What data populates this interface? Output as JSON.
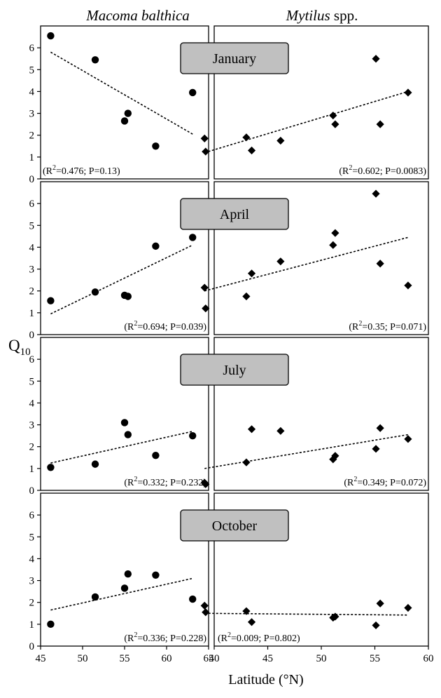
{
  "column_headers": [
    {
      "italic": "Macoma balthica",
      "plain": ""
    },
    {
      "italic": "Mytilus",
      "plain": " spp."
    }
  ],
  "y_axis_label": {
    "main": "Q",
    "sub": "10"
  },
  "x_axis_label": "Latitude (°N)",
  "y_ticks": [
    "0",
    "1",
    "2",
    "3",
    "4",
    "5",
    "6"
  ],
  "x_ticks_left": [
    "45",
    "50",
    "55",
    "60",
    "65"
  ],
  "x_ticks_right": [
    "40",
    "45",
    "50",
    "55",
    "60"
  ],
  "colors": {
    "month_box_fill": "#c0c0c0",
    "marker": "#000000",
    "trend_line": "#000000"
  },
  "chart_data": [
    {
      "type": "scatter",
      "month": "January",
      "species": "Macoma balthica",
      "marker": "circle",
      "xlim": [
        45,
        65
      ],
      "ylim": [
        0,
        7
      ],
      "points": [
        [
          46.2,
          6.55
        ],
        [
          51.5,
          5.45
        ],
        [
          55,
          2.65
        ],
        [
          55.4,
          3.0
        ],
        [
          58.7,
          1.5
        ],
        [
          63.1,
          3.95
        ]
      ],
      "trend": [
        [
          46.2,
          5.8
        ],
        [
          63.1,
          2.05
        ]
      ],
      "stats_text": "(R²=0.476; P=0.13)"
    },
    {
      "type": "scatter",
      "month": "January",
      "species": "Mytilus spp.",
      "marker": "diamond",
      "xlim": [
        40,
        60
      ],
      "ylim": [
        0,
        7
      ],
      "points": [
        [
          39.1,
          1.85
        ],
        [
          39.2,
          1.25
        ],
        [
          43,
          1.9
        ],
        [
          43.5,
          1.3
        ],
        [
          46.2,
          1.75
        ],
        [
          51.1,
          2.9
        ],
        [
          51.3,
          2.5
        ],
        [
          55.1,
          5.5
        ],
        [
          55.5,
          2.5
        ],
        [
          58.1,
          3.95
        ]
      ],
      "trend": [
        [
          39.1,
          1.2
        ],
        [
          58.1,
          4.0
        ]
      ],
      "stats_text": "(R²=0.602; P=0.0083)"
    },
    {
      "type": "scatter",
      "month": "April",
      "species": "Macoma balthica",
      "marker": "circle",
      "xlim": [
        45,
        65
      ],
      "ylim": [
        0,
        7
      ],
      "points": [
        [
          46.2,
          1.55
        ],
        [
          51.5,
          1.95
        ],
        [
          55,
          1.8
        ],
        [
          55.4,
          1.75
        ],
        [
          58.7,
          4.05
        ],
        [
          63.1,
          4.45
        ]
      ],
      "trend": [
        [
          46.2,
          0.95
        ],
        [
          63.1,
          4.1
        ]
      ],
      "stats_text": "(R²=0.694; P=0.039)"
    },
    {
      "type": "scatter",
      "month": "April",
      "species": "Mytilus spp.",
      "marker": "diamond",
      "xlim": [
        40,
        60
      ],
      "ylim": [
        0,
        7
      ],
      "points": [
        [
          39.1,
          2.15
        ],
        [
          39.2,
          1.2
        ],
        [
          43,
          1.75
        ],
        [
          43.5,
          2.8
        ],
        [
          46.2,
          3.35
        ],
        [
          51.1,
          4.1
        ],
        [
          51.3,
          4.65
        ],
        [
          55.1,
          6.45
        ],
        [
          55.5,
          3.25
        ],
        [
          58.1,
          2.25
        ]
      ],
      "trend": [
        [
          39.1,
          2.0
        ],
        [
          58.1,
          4.45
        ]
      ],
      "stats_text": "(R²=0.35; P=0.071)"
    },
    {
      "type": "scatter",
      "month": "July",
      "species": "Macoma balthica",
      "marker": "circle",
      "xlim": [
        45,
        65
      ],
      "ylim": [
        0,
        7
      ],
      "points": [
        [
          46.2,
          1.05
        ],
        [
          51.5,
          1.2
        ],
        [
          55,
          3.1
        ],
        [
          55.4,
          2.55
        ],
        [
          58.7,
          1.6
        ],
        [
          63.1,
          2.5
        ]
      ],
      "trend": [
        [
          46.2,
          1.25
        ],
        [
          63.1,
          2.7
        ]
      ],
      "stats_text": "(R²=0.332; P=0.232)"
    },
    {
      "type": "scatter",
      "month": "July",
      "species": "Mytilus spp.",
      "marker": "diamond",
      "xlim": [
        40,
        60
      ],
      "ylim": [
        0,
        7
      ],
      "points": [
        [
          39.1,
          0.35
        ],
        [
          39.2,
          0.28
        ],
        [
          43,
          1.28
        ],
        [
          43.5,
          2.8
        ],
        [
          46.2,
          2.72
        ],
        [
          51.1,
          1.42
        ],
        [
          51.3,
          1.58
        ],
        [
          55.1,
          1.9
        ],
        [
          55.5,
          2.85
        ],
        [
          58.1,
          2.35
        ]
      ],
      "trend": [
        [
          39.1,
          1.0
        ],
        [
          58.1,
          2.55
        ]
      ],
      "stats_text": "(R²=0.349; P=0.072)"
    },
    {
      "type": "scatter",
      "month": "October",
      "species": "Macoma balthica",
      "marker": "circle",
      "xlim": [
        45,
        65
      ],
      "ylim": [
        0,
        7
      ],
      "points": [
        [
          46.2,
          1.0
        ],
        [
          51.5,
          2.25
        ],
        [
          55,
          2.65
        ],
        [
          55.4,
          3.3
        ],
        [
          58.7,
          3.25
        ],
        [
          63.1,
          2.15
        ]
      ],
      "trend": [
        [
          46.2,
          1.65
        ],
        [
          63.1,
          3.1
        ]
      ],
      "stats_text": "(R²=0.336; P=0.228)"
    },
    {
      "type": "scatter",
      "month": "October",
      "species": "Mytilus spp.",
      "marker": "diamond",
      "xlim": [
        40,
        60
      ],
      "ylim": [
        0,
        7
      ],
      "points": [
        [
          39.1,
          1.85
        ],
        [
          39.2,
          1.55
        ],
        [
          43,
          1.6
        ],
        [
          43.5,
          1.1
        ],
        [
          51.1,
          1.3
        ],
        [
          51.3,
          1.35
        ],
        [
          55.1,
          0.95
        ],
        [
          55.5,
          1.95
        ],
        [
          58.1,
          1.75
        ]
      ],
      "trend": [
        [
          39.1,
          1.5
        ],
        [
          58.1,
          1.42
        ]
      ],
      "stats_text": "(R²=0.009; P=0.802)"
    }
  ]
}
